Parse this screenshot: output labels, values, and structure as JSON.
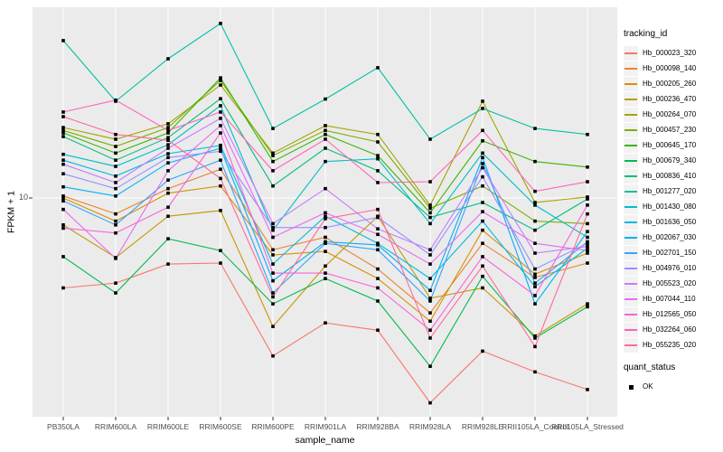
{
  "chart_data": {
    "type": "line",
    "title": "",
    "xlabel": "sample_name",
    "ylabel": "FPKM + 1",
    "y_scale": "log10",
    "y_tick_labels": [
      "10"
    ],
    "y_tick_values": [
      10
    ],
    "ylim": [
      1.2,
      65
    ],
    "grid": true,
    "legend_position": "right",
    "panel_bg": "#EBEBEB",
    "grid_color": "#FFFFFF",
    "point_color": "#000000",
    "axis_text_color": "#4D4D4D",
    "tick_color": "#333333",
    "categories": [
      "PB350LA",
      "RRIM600LA",
      "RRIM600LE",
      "RRIM600SE",
      "RRIM600PE",
      "RRIM901LA",
      "RRIM928BA",
      "RRIM928LA",
      "RRIM928LE",
      "RRII105LA_Control",
      "RRII105LA_Stressed"
    ],
    "series": [
      {
        "name": "Hb_000023_320",
        "color": "#F8766D",
        "values": [
          4.0,
          4.2,
          5.1,
          5.15,
          2.0,
          2.8,
          2.6,
          1.24,
          2.1,
          1.7,
          1.42
        ]
      },
      {
        "name": "Hb_000098_140",
        "color": "#EA8331",
        "values": [
          10.2,
          8.5,
          11.0,
          13.4,
          5.9,
          6.7,
          4.85,
          3.1,
          6.3,
          4.45,
          5.15
        ]
      },
      {
        "name": "Hb_000205_260",
        "color": "#D89000",
        "values": [
          10.0,
          7.9,
          10.5,
          11.3,
          5.6,
          5.8,
          4.4,
          2.85,
          7.2,
          4.6,
          5.7
        ]
      },
      {
        "name": "Hb_000236_470",
        "color": "#C09B00",
        "values": [
          7.6,
          5.45,
          8.3,
          8.8,
          2.7,
          5.0,
          8.3,
          3.6,
          4.0,
          2.45,
          3.4
        ]
      },
      {
        "name": "Hb_000264_070",
        "color": "#A3A500",
        "values": [
          20.5,
          18.2,
          21.3,
          31.6,
          15.8,
          20.9,
          19.1,
          9.3,
          26.8,
          9.55,
          10.1
        ]
      },
      {
        "name": "Hb_000457_230",
        "color": "#7CAE00",
        "values": [
          19.9,
          16.9,
          20.5,
          33.1,
          15.4,
          19.9,
          17.7,
          9.0,
          11.3,
          7.9,
          7.7
        ]
      },
      {
        "name": "Hb_000645_170",
        "color": "#39B600",
        "values": [
          19.4,
          15.8,
          19.4,
          34.0,
          14.5,
          19.1,
          15.4,
          8.6,
          17.9,
          14.5,
          13.7
        ]
      },
      {
        "name": "Hb_000679_340",
        "color": "#00BB4E",
        "values": [
          5.5,
          3.8,
          6.6,
          5.85,
          3.4,
          4.4,
          3.5,
          1.8,
          4.5,
          2.4,
          3.3
        ]
      },
      {
        "name": "Hb_000836_410",
        "color": "#00BF7D",
        "values": [
          18.7,
          14.7,
          18.5,
          27.5,
          11.3,
          16.6,
          13.2,
          8.2,
          9.55,
          7.2,
          9.9
        ]
      },
      {
        "name": "Hb_001277_020",
        "color": "#00C1A3",
        "values": [
          49.7,
          26.8,
          41.3,
          59.2,
          20.3,
          27.4,
          37.7,
          18.2,
          24.9,
          20.3,
          19.1
        ]
      },
      {
        "name": "Hb_001430_080",
        "color": "#00BFC4",
        "values": [
          15.6,
          13.8,
          17.2,
          25.6,
          7.2,
          14.5,
          14.9,
          7.7,
          15.8,
          9.3,
          6.7
        ]
      },
      {
        "name": "Hb_001636_050",
        "color": "#00BAE0",
        "values": [
          14.7,
          12.5,
          15.7,
          17.1,
          5.1,
          8.3,
          6.3,
          4.4,
          7.9,
          4.05,
          6.0
        ]
      },
      {
        "name": "Hb_002067_030",
        "color": "#00B0F6",
        "values": [
          11.2,
          10.2,
          14.3,
          16.6,
          4.3,
          6.4,
          6.2,
          3.9,
          15.1,
          3.4,
          7.1
        ]
      },
      {
        "name": "Hb_002701_150",
        "color": "#35A2FF",
        "values": [
          9.7,
          7.6,
          12.0,
          14.7,
          3.8,
          6.3,
          5.9,
          3.5,
          14.2,
          4.2,
          6.4
        ]
      },
      {
        "name": "Hb_004976_010",
        "color": "#9590FF",
        "values": [
          12.8,
          11.0,
          15.1,
          16.1,
          7.4,
          7.4,
          8.2,
          5.6,
          12.4,
          4.85,
          6.3
        ]
      },
      {
        "name": "Hb_005523_020",
        "color": "#C77CFF",
        "values": [
          14.1,
          11.7,
          16.6,
          22.5,
          7.7,
          11.0,
          7.3,
          5.9,
          13.6,
          5.7,
          6.1
        ]
      },
      {
        "name": "Hb_007044_110",
        "color": "#E76BF3",
        "values": [
          8.9,
          5.4,
          13.2,
          20.9,
          6.7,
          8.6,
          6.9,
          5.1,
          8.7,
          6.3,
          5.85
        ]
      },
      {
        "name": "Hb_012565_050",
        "color": "#FA62DB",
        "values": [
          7.35,
          7.0,
          9.1,
          19.4,
          4.65,
          4.65,
          4.0,
          2.6,
          5.5,
          3.7,
          9.3
        ]
      },
      {
        "name": "Hb_032264_060",
        "color": "#FF62BC",
        "values": [
          24.0,
          27.1,
          19.9,
          24.0,
          13.2,
          18.2,
          11.7,
          11.8,
          19.9,
          10.7,
          11.8
        ]
      },
      {
        "name": "Hb_055235_020",
        "color": "#FF6A98",
        "values": [
          22.9,
          19.1,
          18.0,
          12.2,
          3.65,
          8.1,
          8.9,
          2.4,
          5.0,
          2.2,
          8.5
        ]
      }
    ]
  },
  "legend": {
    "tracking_title": "tracking_id",
    "quant_title": "quant_status",
    "quant_items": [
      {
        "label": "OK"
      }
    ],
    "key_bg": "#F2F2F2"
  }
}
